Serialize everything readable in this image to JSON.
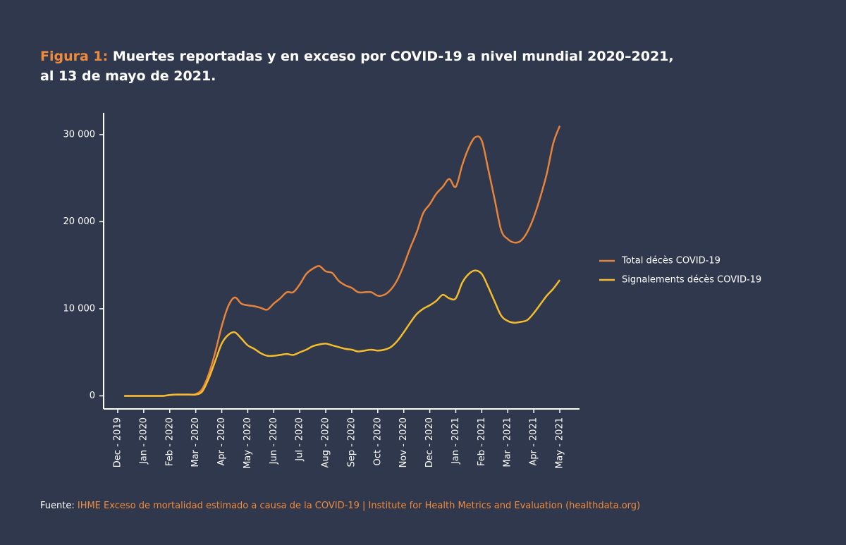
{
  "chart_data": {
    "type": "line",
    "title_lead": "Figura 1:",
    "title": "Muertes reportadas y en exceso por COVID-19 a nivel mundial 2020–2021, al 13 de mayo de 2021.",
    "source_lead": "Fuente:",
    "source": "IHME Exceso de mortalidad estimado a causa de la COVID-19 | Institute for Health Metrics and Evaluation (healthdata.org)",
    "categories": [
      "Dec - 2019",
      null,
      null,
      null,
      "Jan - 2020",
      null,
      null,
      null,
      "Feb - 2020",
      null,
      null,
      null,
      "Mar - 2020",
      null,
      null,
      null,
      "Apr - 2020",
      null,
      null,
      null,
      "May - 2020",
      null,
      null,
      null,
      "Jun - 2020",
      null,
      null,
      null,
      "Jul - 2020",
      null,
      null,
      null,
      "Aug - 2020",
      null,
      null,
      null,
      "Sep - 2020",
      null,
      null,
      null,
      "Oct - 2020",
      null,
      null,
      null,
      "Nov - 2020",
      null,
      null,
      null,
      "Dec - 2020",
      null,
      null,
      null,
      "Jan - 2021",
      null,
      null,
      null,
      "Feb - 2021",
      null,
      null,
      null,
      "Mar - 2021",
      null,
      null,
      null,
      "Apr - 2021",
      null,
      null,
      null,
      "May - 2021"
    ],
    "series": [
      {
        "name": "Total décès COVID-19",
        "color": "#e8833a",
        "values": [
          null,
          0,
          0,
          0,
          0,
          0,
          0,
          0,
          100,
          150,
          150,
          150,
          200,
          800,
          2500,
          5000,
          8000,
          10300,
          11300,
          10600,
          10400,
          10300,
          10100,
          9900,
          10600,
          11200,
          11900,
          11900,
          12800,
          14000,
          14600,
          14900,
          14300,
          14100,
          13200,
          12700,
          12400,
          11900,
          11900,
          11900,
          11500,
          11600,
          12200,
          13300,
          15000,
          17000,
          18800,
          21000,
          22000,
          23200,
          24000,
          24900,
          24000,
          26500,
          28500,
          29700,
          29300,
          26000,
          22500,
          19000,
          18000,
          17600,
          17800,
          18800,
          20500,
          22800,
          25500,
          29000,
          31000
        ]
      },
      {
        "name": "Signalements décès COVID-19",
        "color": "#f5bc2c",
        "values": [
          null,
          0,
          0,
          0,
          0,
          0,
          0,
          0,
          100,
          150,
          150,
          150,
          150,
          500,
          2000,
          4000,
          6000,
          7000,
          7300,
          6600,
          5800,
          5400,
          4900,
          4600,
          4600,
          4700,
          4800,
          4700,
          5000,
          5300,
          5700,
          5900,
          6000,
          5800,
          5600,
          5400,
          5300,
          5100,
          5200,
          5300,
          5200,
          5300,
          5600,
          6300,
          7300,
          8400,
          9400,
          10000,
          10400,
          10900,
          11600,
          11200,
          11200,
          13000,
          14000,
          14400,
          14000,
          12500,
          10800,
          9200,
          8600,
          8400,
          8500,
          8700,
          9500,
          10500,
          11500,
          12300,
          13300
        ]
      }
    ],
    "ylim": [
      -1500,
      32500
    ],
    "yticks": [
      0,
      {
        "value": 10000,
        "label": "10 000"
      },
      {
        "value": 20000,
        "label": "20 000"
      },
      {
        "value": 30000,
        "label": "30 000"
      }
    ],
    "legend": "right"
  }
}
